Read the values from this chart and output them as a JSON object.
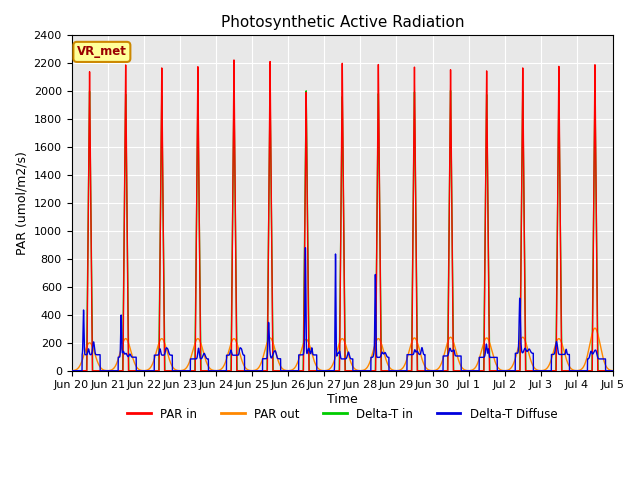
{
  "title": "Photosynthetic Active Radiation",
  "ylabel": "PAR (umol/m2/s)",
  "xlabel": "Time",
  "annotation_label": "VR_met",
  "annotation_facecolor": "#FFFF99",
  "annotation_edgecolor": "#CC8800",
  "annotation_textcolor": "#990000",
  "legend_labels": [
    "PAR in",
    "PAR out",
    "Delta-T in",
    "Delta-T Diffuse"
  ],
  "legend_colors": [
    "#FF0000",
    "#FF8800",
    "#00CC00",
    "#0000DD"
  ],
  "ylim": [
    0,
    2400
  ],
  "num_days": 15,
  "background_color": "#E8E8E8",
  "grid_color": "#FFFFFF",
  "line_width": 1.0,
  "tick_labels": [
    "Jun 20",
    "Jun 21",
    "Jun 22",
    "Jun 23",
    "Jun 24",
    "Jun 25",
    "Jun 26",
    "Jun 27",
    "Jun 28",
    "Jun 29",
    "Jun 30",
    "Jul 1",
    "Jul 2",
    "Jul 3",
    "Jul 4",
    "Jul 5"
  ]
}
